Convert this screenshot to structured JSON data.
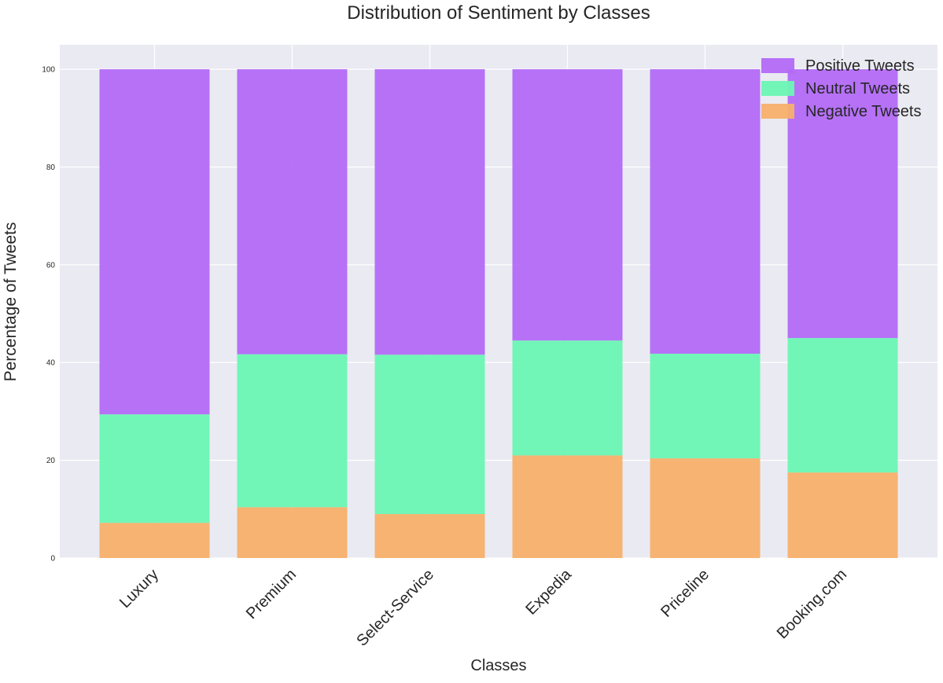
{
  "chart_data": {
    "type": "bar",
    "stacked": true,
    "title": "Distribution of Sentiment by Classes",
    "xlabel": "Classes",
    "ylabel": "Percentage of Tweets",
    "categories": [
      "Luxury",
      "Premium",
      "Select-Service",
      "Expedia",
      "Priceline",
      "Booking.com"
    ],
    "ylim": [
      0,
      105
    ],
    "yticks": [
      0,
      20,
      40,
      60,
      80,
      100
    ],
    "grid": true,
    "legend_position": "top-right",
    "series": [
      {
        "name": "Negative Tweets",
        "color": "#f7b06a",
        "values": [
          7.2,
          10.4,
          9.0,
          21.0,
          20.4,
          17.5
        ]
      },
      {
        "name": "Neutral Tweets",
        "color": "#6af7b3",
        "values": [
          22.2,
          31.3,
          32.6,
          23.5,
          21.4,
          27.5
        ]
      },
      {
        "name": "Positive Tweets",
        "color": "#b36af7",
        "values": [
          70.6,
          58.3,
          58.4,
          55.5,
          58.2,
          55.0
        ]
      }
    ],
    "legend_order": [
      "Positive Tweets",
      "Neutral Tweets",
      "Negative Tweets"
    ]
  }
}
